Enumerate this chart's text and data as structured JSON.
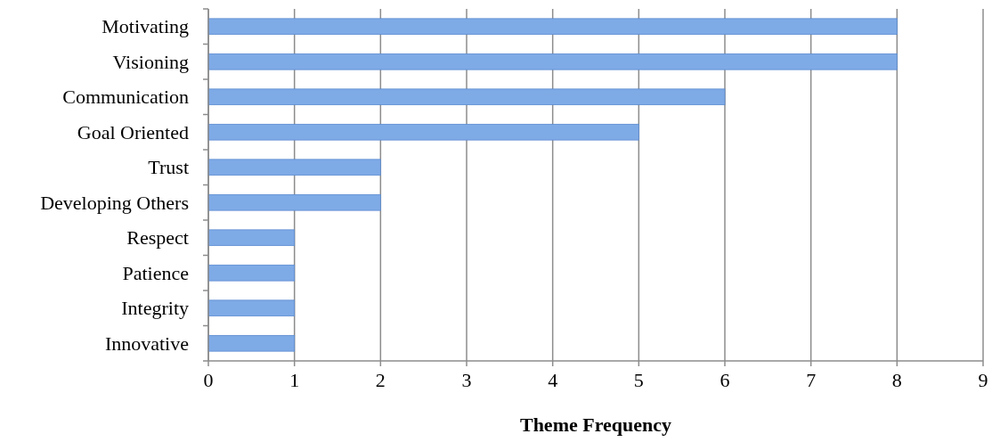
{
  "chart_data": {
    "type": "bar",
    "orientation": "horizontal",
    "xlabel": "Theme Frequency",
    "categories": [
      "Motivating",
      "Visioning",
      "Communication",
      "Goal Oriented",
      "Trust",
      "Developing Others",
      "Respect",
      "Patience",
      "Integrity",
      "Innovative"
    ],
    "values": [
      8,
      8,
      6,
      5,
      2,
      2,
      1,
      1,
      1,
      1
    ],
    "color": "#7eaae6",
    "xlim": [
      0,
      9
    ],
    "xticks": [
      0,
      1,
      2,
      3,
      4,
      5,
      6,
      7,
      8,
      9
    ],
    "grid": "x"
  }
}
